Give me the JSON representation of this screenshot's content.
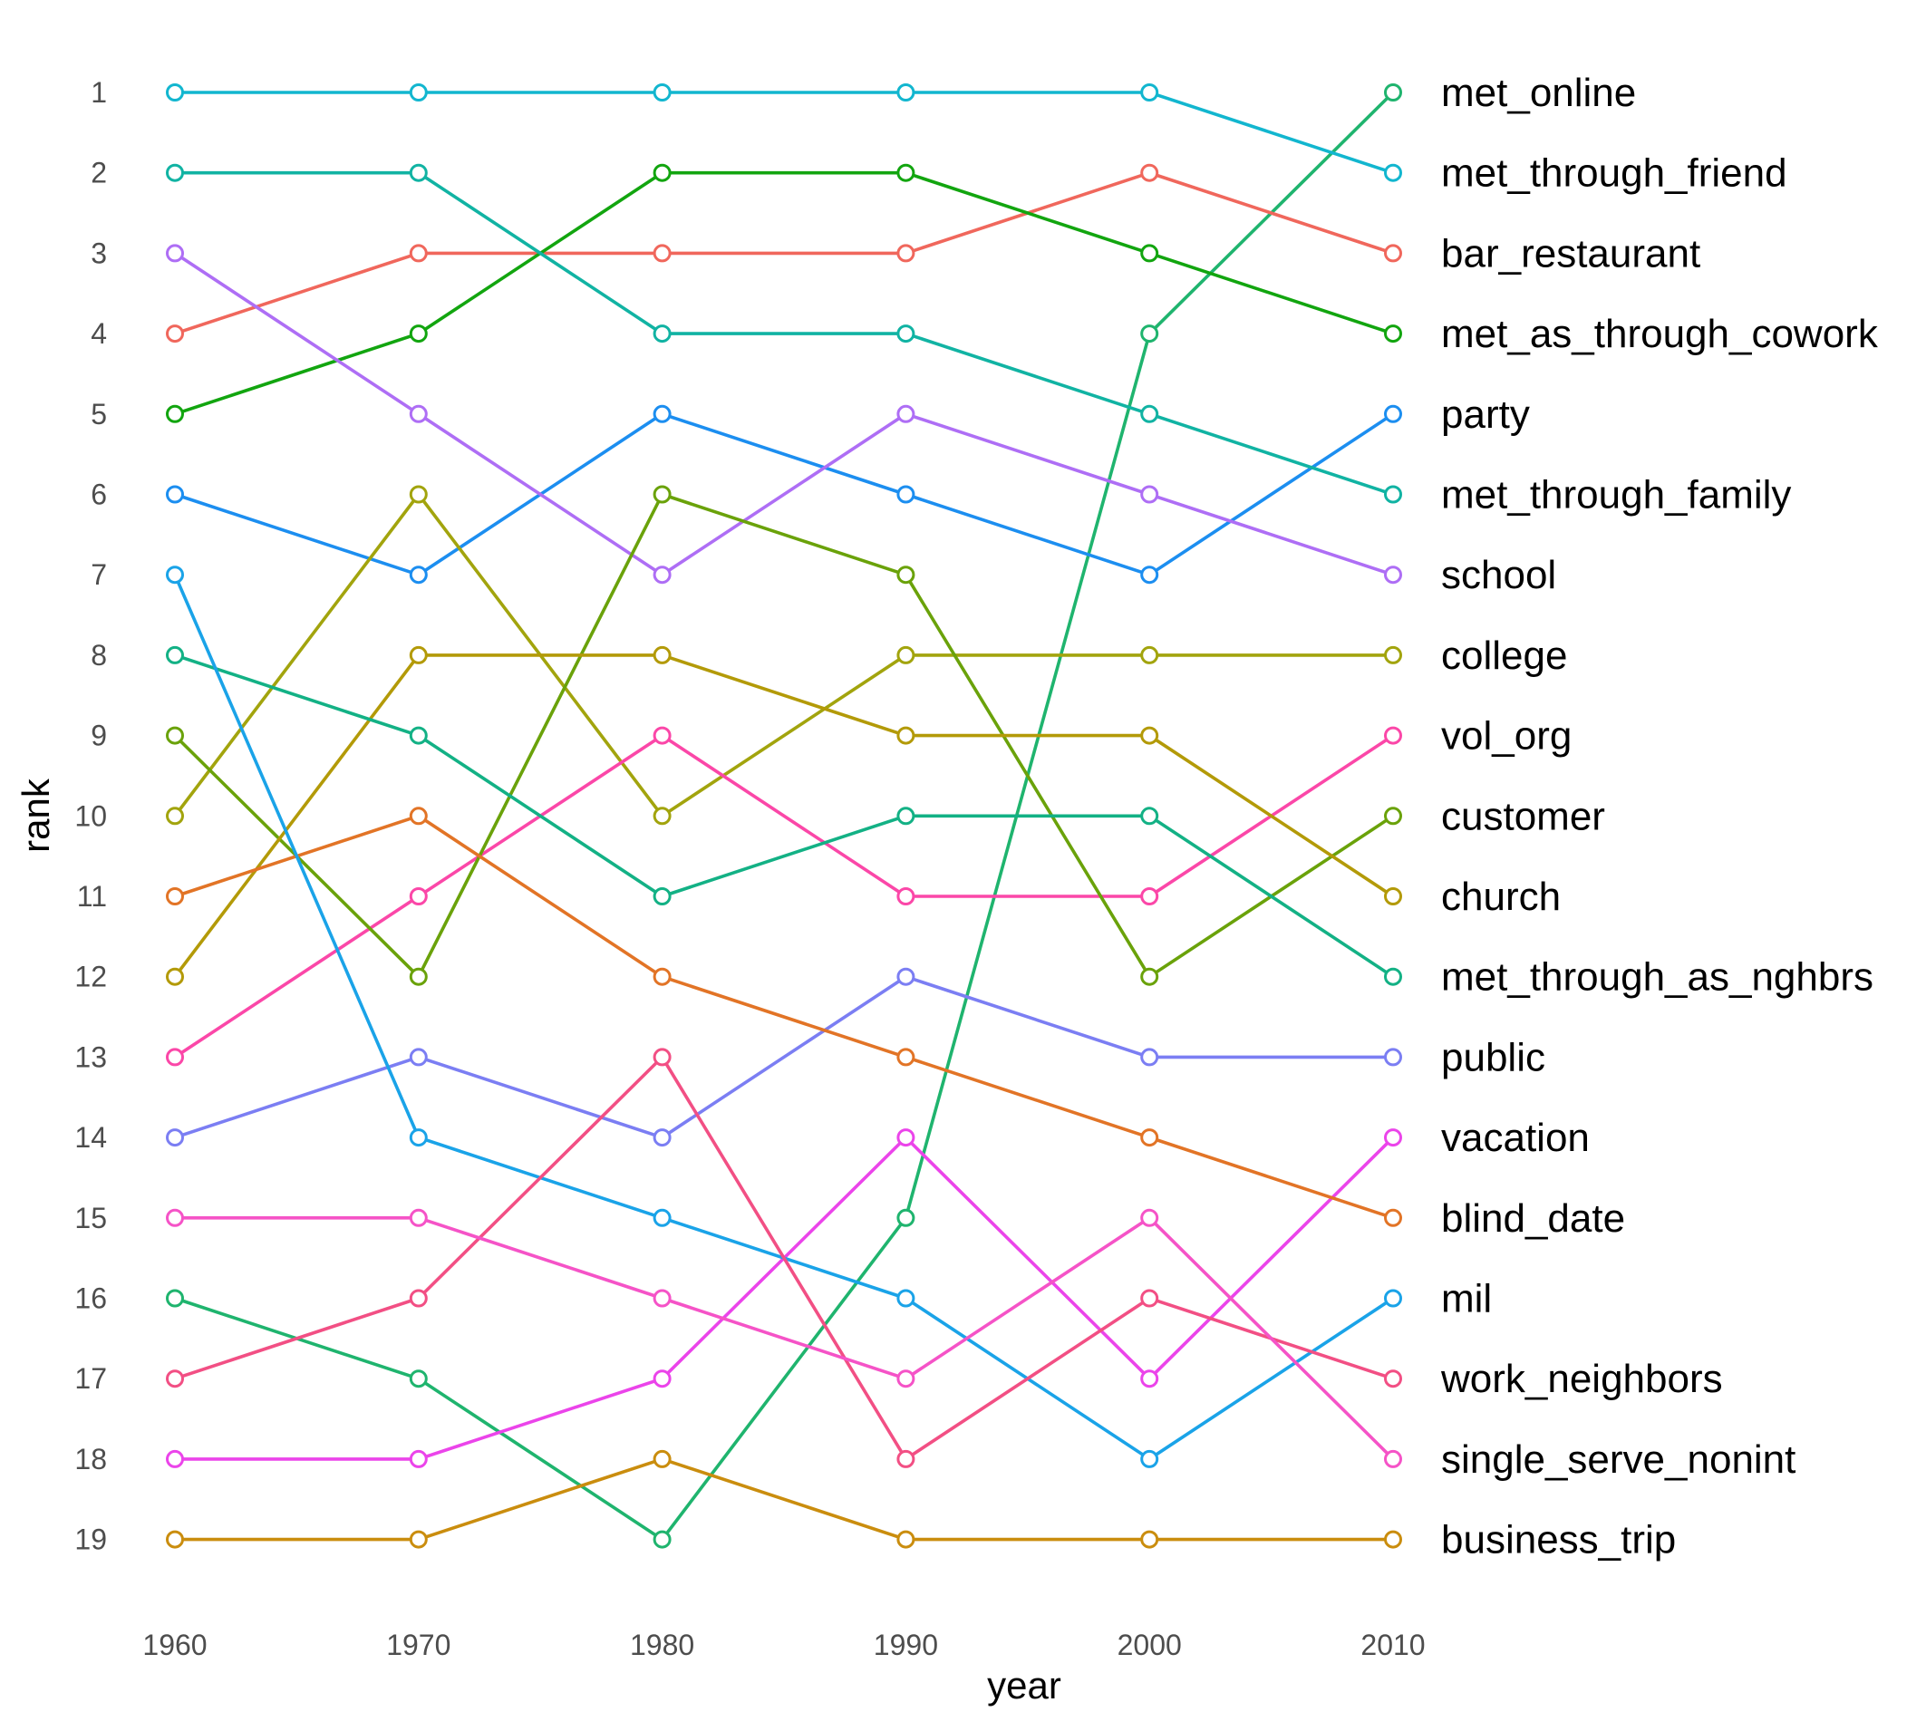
{
  "chart_data": {
    "type": "line",
    "xlabel": "year",
    "ylabel": "rank",
    "x": [
      1960,
      1970,
      1980,
      1990,
      2000,
      2010
    ],
    "x_tick_labels": [
      "1960",
      "1970",
      "1980",
      "1990",
      "2000",
      "2010"
    ],
    "y_tick_labels": [
      "1",
      "2",
      "3",
      "4",
      "5",
      "6",
      "7",
      "8",
      "9",
      "10",
      "11",
      "12",
      "13",
      "14",
      "15",
      "16",
      "17",
      "18",
      "19"
    ],
    "ylim": [
      1,
      19
    ],
    "y_reversed": true,
    "grid": false,
    "legend": "direct labels at right end of lines",
    "markers": "open circles",
    "series": [
      {
        "name": "met_online",
        "color": "#1fb46e",
        "values": [
          16,
          17,
          19,
          15,
          4,
          1
        ]
      },
      {
        "name": "met_through_friend",
        "color": "#12b6cf",
        "values": [
          1,
          1,
          1,
          1,
          1,
          2
        ]
      },
      {
        "name": "bar_restaurant",
        "color": "#f0675c",
        "values": [
          4,
          3,
          3,
          3,
          2,
          3
        ]
      },
      {
        "name": "met_as_through_cowork",
        "color": "#12a50f",
        "values": [
          5,
          4,
          2,
          2,
          3,
          4
        ]
      },
      {
        "name": "party",
        "color": "#1c8ef0",
        "values": [
          6,
          7,
          5,
          6,
          7,
          5
        ]
      },
      {
        "name": "met_through_family",
        "color": "#11b3a3",
        "values": [
          2,
          2,
          4,
          4,
          5,
          6
        ]
      },
      {
        "name": "school",
        "color": "#ae6ef5",
        "values": [
          3,
          5,
          7,
          5,
          6,
          7
        ]
      },
      {
        "name": "college",
        "color": "#a2a40d",
        "values": [
          10,
          6,
          10,
          8,
          8,
          8
        ]
      },
      {
        "name": "vol_org",
        "color": "#fb47a8",
        "values": [
          13,
          11,
          9,
          11,
          11,
          9
        ]
      },
      {
        "name": "customer",
        "color": "#6aa20a",
        "values": [
          9,
          12,
          6,
          7,
          12,
          10
        ]
      },
      {
        "name": "church",
        "color": "#b39a08",
        "values": [
          12,
          8,
          8,
          9,
          9,
          11
        ]
      },
      {
        "name": "met_through_as_nghbrs",
        "color": "#13b185",
        "values": [
          8,
          9,
          11,
          10,
          10,
          12
        ]
      },
      {
        "name": "public",
        "color": "#7b7ef3",
        "values": [
          14,
          13,
          14,
          12,
          13,
          13
        ]
      },
      {
        "name": "vacation",
        "color": "#eb44ea",
        "values": [
          18,
          18,
          17,
          14,
          17,
          14
        ]
      },
      {
        "name": "blind_date",
        "color": "#e27426",
        "values": [
          11,
          10,
          12,
          13,
          14,
          15
        ]
      },
      {
        "name": "mil",
        "color": "#1aa3e8",
        "values": [
          7,
          14,
          15,
          16,
          18,
          16
        ]
      },
      {
        "name": "work_neighbors",
        "color": "#f24f84",
        "values": [
          17,
          16,
          13,
          18,
          16,
          17
        ]
      },
      {
        "name": "single_serve_nonint",
        "color": "#f553c7",
        "values": [
          15,
          15,
          16,
          17,
          15,
          18
        ]
      },
      {
        "name": "business_trip",
        "color": "#ca8d0e",
        "values": [
          19,
          19,
          18,
          19,
          19,
          19
        ]
      }
    ]
  }
}
